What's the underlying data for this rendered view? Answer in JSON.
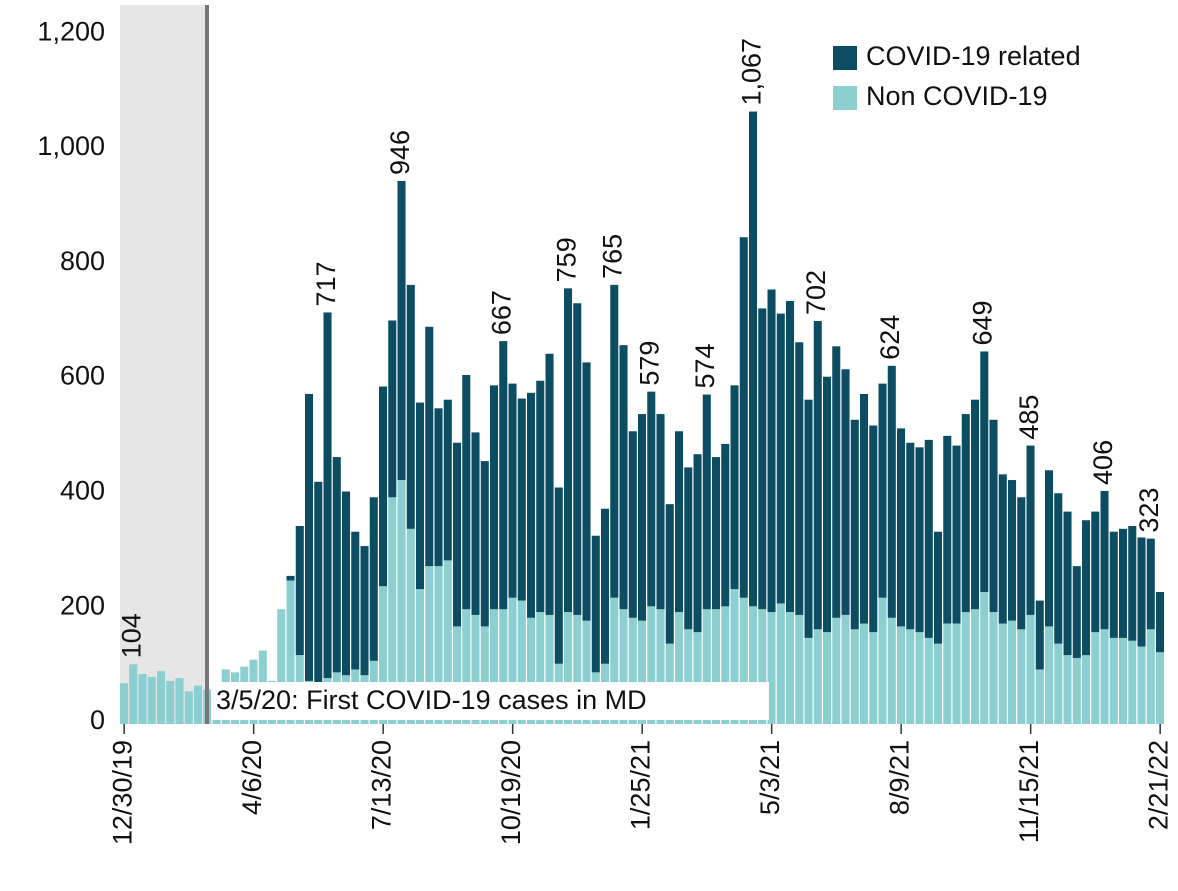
{
  "chart_data": {
    "type": "bar",
    "stacked": true,
    "annotation": "3/5/20: First COVID-19 cases in MD",
    "categories": [
      "12/30/19",
      null,
      null,
      null,
      null,
      null,
      null,
      null,
      null,
      null,
      null,
      null,
      null,
      null,
      "4/6/20",
      null,
      null,
      null,
      null,
      null,
      null,
      null,
      null,
      null,
      null,
      null,
      null,
      null,
      "7/13/20",
      null,
      null,
      null,
      null,
      null,
      null,
      null,
      null,
      null,
      null,
      null,
      null,
      null,
      "10/19/20",
      null,
      null,
      null,
      null,
      null,
      null,
      null,
      null,
      null,
      null,
      null,
      null,
      null,
      "1/25/21",
      null,
      null,
      null,
      null,
      null,
      null,
      null,
      null,
      null,
      null,
      null,
      null,
      null,
      "5/3/21",
      null,
      null,
      null,
      null,
      null,
      null,
      null,
      null,
      null,
      null,
      null,
      null,
      null,
      "8/9/21",
      null,
      null,
      null,
      null,
      null,
      null,
      null,
      null,
      null,
      null,
      null,
      null,
      null,
      "11/15/21",
      null,
      null,
      null,
      null,
      null,
      null,
      null,
      null,
      null,
      null,
      null,
      null,
      null,
      "2/21/22"
    ],
    "series": [
      {
        "name": "Non COVID-19",
        "color": "#8ccfd0",
        "values": [
          71,
          104,
          87,
          82,
          92,
          75,
          80,
          57,
          67,
          60,
          50,
          95,
          90,
          100,
          112,
          128,
          75,
          200,
          250,
          120,
          75,
          70,
          80,
          90,
          85,
          95,
          85,
          110,
          240,
          395,
          425,
          340,
          235,
          275,
          275,
          285,
          170,
          200,
          190,
          170,
          200,
          200,
          220,
          215,
          185,
          195,
          190,
          105,
          195,
          190,
          180,
          90,
          105,
          220,
          200,
          185,
          180,
          205,
          200,
          140,
          195,
          165,
          160,
          200,
          200,
          205,
          235,
          220,
          205,
          200,
          195,
          210,
          195,
          190,
          150,
          165,
          160,
          185,
          190,
          165,
          175,
          160,
          220,
          185,
          170,
          165,
          160,
          150,
          140,
          175,
          175,
          195,
          200,
          230,
          195,
          175,
          180,
          165,
          190,
          95,
          170,
          140,
          120,
          115,
          120,
          160,
          165,
          150,
          150,
          145,
          135,
          165,
          125
        ]
      },
      {
        "name": "COVID-19 related",
        "color": "#0d4d62",
        "values": [
          0,
          0,
          0,
          0,
          0,
          0,
          0,
          0,
          0,
          0,
          0,
          0,
          0,
          0,
          0,
          0,
          0,
          0,
          8,
          225,
          500,
          352,
          637,
          375,
          320,
          240,
          225,
          285,
          348,
          308,
          521,
          425,
          325,
          417,
          275,
          280,
          320,
          408,
          318,
          288,
          390,
          467,
          373,
          352,
          392,
          403,
          455,
          307,
          564,
          543,
          450,
          238,
          270,
          545,
          460,
          325,
          360,
          374,
          340,
          243,
          315,
          282,
          310,
          374,
          265,
          283,
          355,
          628,
          862,
          524,
          562,
          505,
          542,
          475,
          415,
          537,
          445,
          473,
          428,
          365,
          400,
          360,
          373,
          439,
          345,
          325,
          322,
          345,
          195,
          327,
          310,
          345,
          365,
          419,
          335,
          260,
          245,
          230,
          295,
          120,
          272,
          262,
          250,
          160,
          235,
          210,
          241,
          185,
          190,
          200,
          190,
          158,
          105
        ]
      }
    ],
    "total_labels": [
      {
        "at": 1,
        "value": 104
      },
      {
        "at": 22,
        "value": 717
      },
      {
        "at": 30,
        "value": 946
      },
      {
        "at": 41,
        "value": 667
      },
      {
        "at": 48,
        "value": 759
      },
      {
        "at": 53,
        "value": 765
      },
      {
        "at": 57,
        "value": 579
      },
      {
        "at": 63,
        "value": 574
      },
      {
        "at": 68,
        "value": 1067,
        "label": "1,067"
      },
      {
        "at": 75,
        "value": 702
      },
      {
        "at": 83,
        "value": 624
      },
      {
        "at": 93,
        "value": 649
      },
      {
        "at": 98,
        "value": 485
      },
      {
        "at": 106,
        "value": 406
      },
      {
        "at": 111,
        "value": 323
      }
    ],
    "ylim": [
      0,
      1250
    ],
    "yticks": [
      0,
      200,
      400,
      600,
      800,
      {
        "value": 1000,
        "label": "1,000"
      },
      {
        "value": 1200,
        "label": "1,200"
      }
    ],
    "grid": false,
    "legend": "top-right"
  }
}
